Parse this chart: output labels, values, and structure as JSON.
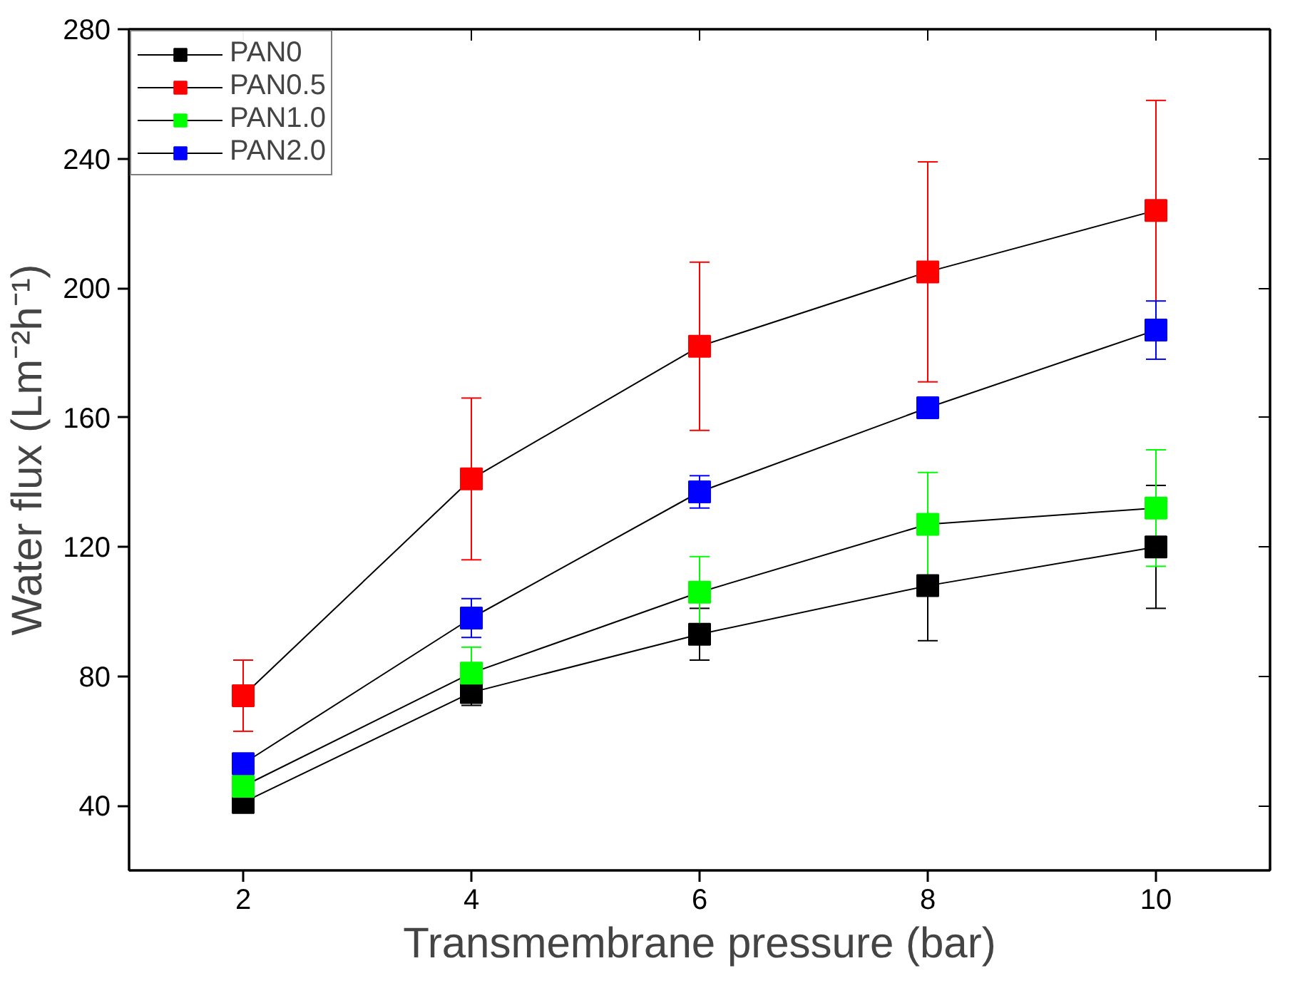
{
  "chart_data": {
    "type": "line",
    "xlabel": "Transmembrane pressure (bar)",
    "ylabel": "Water flux (Lm⁻²h⁻¹)",
    "x": [
      2,
      4,
      6,
      8,
      10
    ],
    "xlim": [
      1,
      11
    ],
    "xticks": [
      2,
      4,
      6,
      8,
      10
    ],
    "ylim": [
      20,
      280
    ],
    "yticks": [
      40,
      80,
      120,
      160,
      200,
      240,
      280
    ],
    "marker": "square",
    "legend": "top left",
    "grid": false,
    "series": [
      {
        "name": "PAN0",
        "color": "#000000",
        "values": [
          41,
          75,
          93,
          108,
          120
        ],
        "errors": [
          2,
          4,
          8,
          17,
          19
        ]
      },
      {
        "name": "PAN0.5",
        "color": "#ff0000",
        "values": [
          74,
          141,
          182,
          205,
          224
        ],
        "errors": [
          11,
          25,
          26,
          34,
          34
        ]
      },
      {
        "name": "PAN1.0",
        "color": "#00ff00",
        "values": [
          46,
          81,
          106,
          127,
          132
        ],
        "errors": [
          2,
          8,
          11,
          16,
          18
        ]
      },
      {
        "name": "PAN2.0",
        "color": "#0000ff",
        "values": [
          53,
          98,
          137,
          163,
          187
        ],
        "errors": [
          2,
          6,
          5,
          2,
          9
        ]
      }
    ]
  }
}
